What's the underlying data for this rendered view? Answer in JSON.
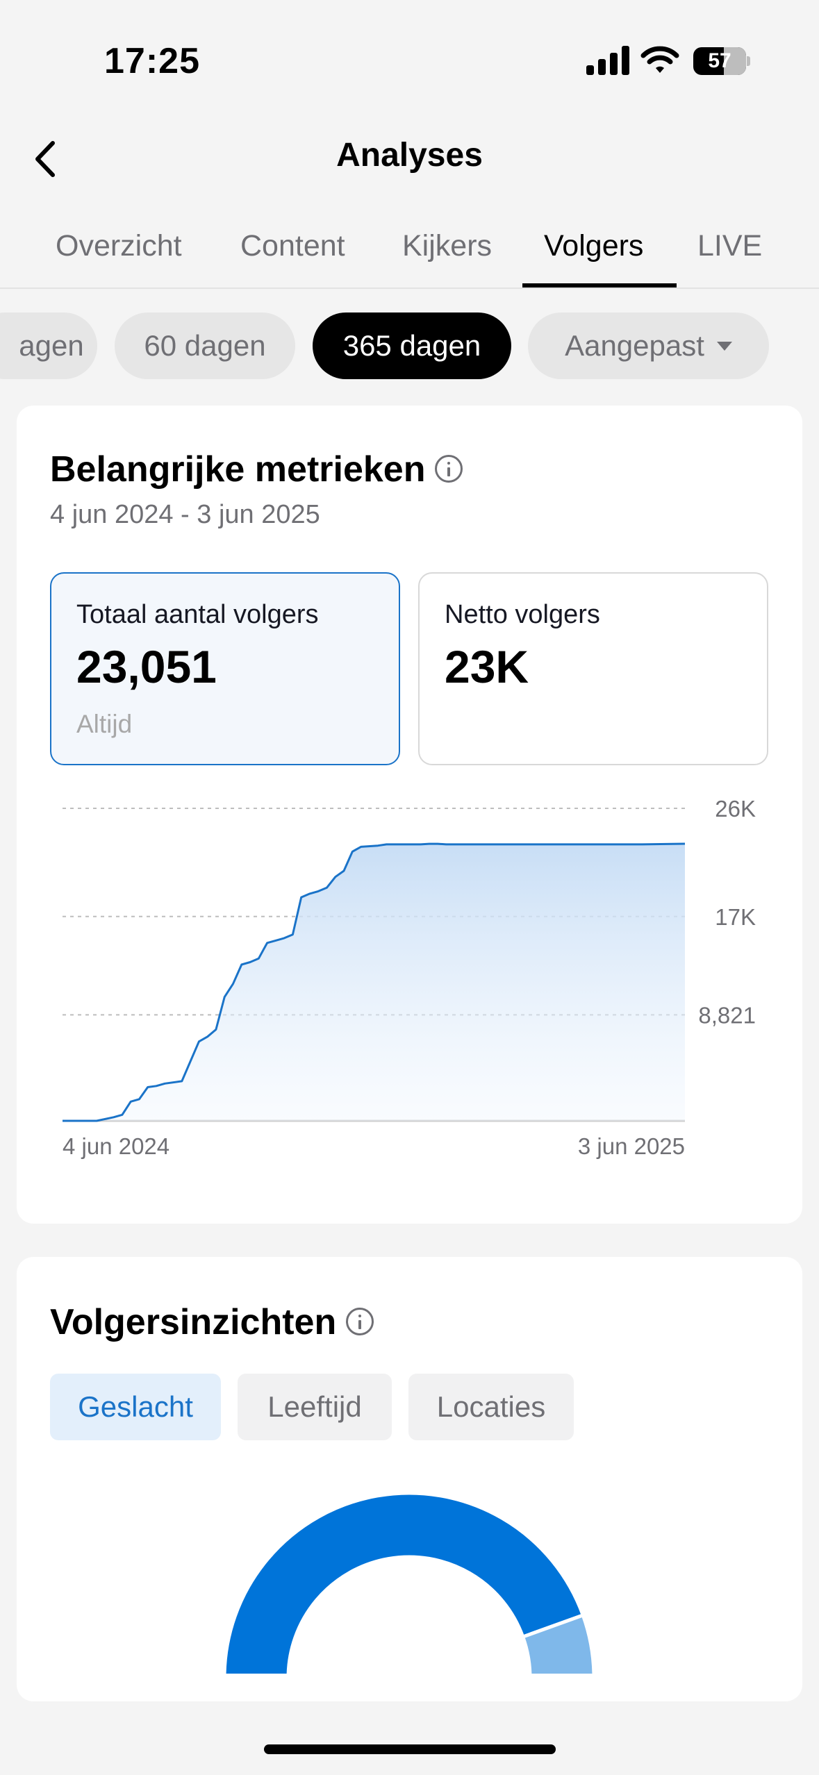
{
  "status_bar": {
    "time": "17:25",
    "battery": "57"
  },
  "header": {
    "title": "Analyses"
  },
  "tabs": [
    {
      "label": "Overzicht"
    },
    {
      "label": "Content"
    },
    {
      "label": "Kijkers"
    },
    {
      "label": "Volgers",
      "active": true
    },
    {
      "label": "LIVE"
    }
  ],
  "ranges": [
    {
      "label": "agen"
    },
    {
      "label": "60 dagen"
    },
    {
      "label": "365 dagen",
      "active": true
    },
    {
      "label": "Aangepast"
    }
  ],
  "key_metrics": {
    "title": "Belangrijke metrieken",
    "date_range": "4 jun 2024 - 3 jun 2025",
    "cards": [
      {
        "label": "Totaal aantal volgers",
        "value": "23,051",
        "sub": "Altijd",
        "selected": true
      },
      {
        "label": "Netto volgers",
        "value": "23K",
        "sub": ""
      }
    ]
  },
  "chart_data": {
    "type": "area",
    "title": "",
    "xlabel": "",
    "ylabel": "",
    "x_tick_labels": [
      "4 jun 2024",
      "3 jun 2025"
    ],
    "y_tick_labels": [
      "26K",
      "17K",
      "8,821"
    ],
    "y_ticks": [
      26000,
      17000,
      8821
    ],
    "ylim": [
      0,
      26000
    ],
    "xlim": [
      0,
      365
    ],
    "grid": "horizontal dashed",
    "color": "#1a73c8",
    "series": [
      {
        "x": [
          0,
          20,
          30,
          35,
          40,
          45,
          50,
          55,
          60,
          70,
          80,
          85,
          90,
          95,
          100,
          105,
          110,
          115,
          120,
          125,
          130,
          135,
          140,
          145,
          150,
          155,
          160,
          165,
          170,
          175,
          185,
          190,
          200,
          210,
          215,
          220,
          225,
          230,
          235,
          240,
          250,
          260,
          270,
          280,
          290,
          300,
          320,
          340,
          365
        ],
        "y": [
          0,
          0,
          300,
          500,
          1600,
          1800,
          2800,
          2900,
          3100,
          3300,
          6600,
          7000,
          7600,
          10300,
          11400,
          13000,
          13200,
          13500,
          14800,
          15000,
          15200,
          15500,
          18600,
          18900,
          19100,
          19400,
          20300,
          20800,
          22400,
          22800,
          22900,
          23000,
          23000,
          23000,
          23050,
          23050,
          23000,
          23000,
          23000,
          23000,
          23000,
          23000,
          23000,
          23000,
          23000,
          23000,
          23000,
          23000,
          23051
        ]
      }
    ]
  },
  "insights": {
    "title": "Volgersinzichten",
    "tabs": [
      {
        "label": "Geslacht",
        "active": true
      },
      {
        "label": "Leeftijd"
      },
      {
        "label": "Locaties"
      }
    ],
    "donut": {
      "type": "pie",
      "segments": [
        {
          "value": 89,
          "color": "#0074d9"
        },
        {
          "value": 11,
          "color": "#7fb8ea"
        }
      ]
    }
  },
  "colors": {
    "accent": "#1a73c8",
    "grid": "#bdbdbd"
  }
}
